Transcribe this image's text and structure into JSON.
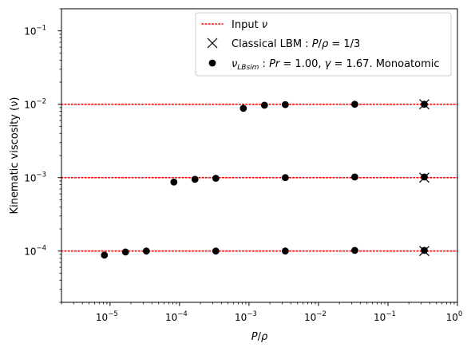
{
  "chart_data": {
    "type": "scatter",
    "title": "",
    "xlabel": "P/ρ",
    "ylabel": "Kinematic viscosity (ν)",
    "x_scale": "log",
    "y_scale": "log",
    "xlim": [
      2e-06,
      1
    ],
    "ylim": [
      2e-05,
      0.2
    ],
    "grid": false,
    "legend_position": "top-right",
    "x_ticks": [
      {
        "value": 1e-05,
        "base": "10",
        "exp": "−5"
      },
      {
        "value": 0.0001,
        "base": "10",
        "exp": "−4"
      },
      {
        "value": 0.001,
        "base": "10",
        "exp": "−3"
      },
      {
        "value": 0.01,
        "base": "10",
        "exp": "−2"
      },
      {
        "value": 0.1,
        "base": "10",
        "exp": "−1"
      },
      {
        "value": 1,
        "base": "10",
        "exp": "0"
      }
    ],
    "y_ticks": [
      {
        "value": 0.0001,
        "base": "10",
        "exp": "−4"
      },
      {
        "value": 0.001,
        "base": "10",
        "exp": "−3"
      },
      {
        "value": 0.01,
        "base": "10",
        "exp": "−2"
      },
      {
        "value": 0.1,
        "base": "10",
        "exp": "−1"
      }
    ],
    "series": [
      {
        "name": "Input ν",
        "style": "hline-dotted",
        "color": "#ff0000",
        "y": [
          0.0001,
          0.001,
          0.01
        ]
      },
      {
        "name": "Classical LBM : P/ρ = 1/3",
        "style": "x-marker",
        "color": "#000000",
        "points": [
          {
            "x": 0.3333,
            "y": 0.0001
          },
          {
            "x": 0.3333,
            "y": 0.001
          },
          {
            "x": 0.3333,
            "y": 0.01
          }
        ]
      },
      {
        "name": "ν_LBsim : Pr = 1.00, γ = 1.67. Monoatomic",
        "style": "dot-marker",
        "color": "#000000",
        "points": [
          {
            "x": 8.3e-06,
            "y": 8.8e-05
          },
          {
            "x": 1.67e-05,
            "y": 9.7e-05
          },
          {
            "x": 3.33e-05,
            "y": 0.0001
          },
          {
            "x": 0.000333,
            "y": 0.0001
          },
          {
            "x": 0.00333,
            "y": 0.0001
          },
          {
            "x": 0.0333,
            "y": 0.000102
          },
          {
            "x": 0.3333,
            "y": 0.000102
          },
          {
            "x": 8.3e-05,
            "y": 0.00087
          },
          {
            "x": 0.000167,
            "y": 0.00095
          },
          {
            "x": 0.000333,
            "y": 0.00098
          },
          {
            "x": 0.00333,
            "y": 0.001
          },
          {
            "x": 0.0333,
            "y": 0.00102
          },
          {
            "x": 0.3333,
            "y": 0.00102
          },
          {
            "x": 0.00083,
            "y": 0.0088
          },
          {
            "x": 0.00167,
            "y": 0.0097
          },
          {
            "x": 0.00333,
            "y": 0.0099
          },
          {
            "x": 0.0333,
            "y": 0.01
          },
          {
            "x": 0.3333,
            "y": 0.01
          }
        ]
      }
    ],
    "legend": {
      "entries": [
        {
          "key": "input",
          "parts": [
            {
              "t": "Input "
            },
            {
              "t": "ν",
              "i": true
            }
          ]
        },
        {
          "key": "lbm",
          "parts": [
            {
              "t": "Classical LBM : "
            },
            {
              "t": "P",
              "i": true
            },
            {
              "t": "/"
            },
            {
              "t": "ρ",
              "i": true
            },
            {
              "t": " = 1/3"
            }
          ]
        },
        {
          "key": "sim",
          "parts": [
            {
              "t": "ν",
              "i": true
            },
            {
              "t": "LBsim",
              "i": true,
              "sub": true
            },
            {
              "t": " : "
            },
            {
              "t": "Pr",
              "i": true
            },
            {
              "t": " = 1.00, "
            },
            {
              "t": "γ",
              "i": true
            },
            {
              "t": " = 1.67. Monoatomic"
            }
          ]
        }
      ]
    }
  }
}
